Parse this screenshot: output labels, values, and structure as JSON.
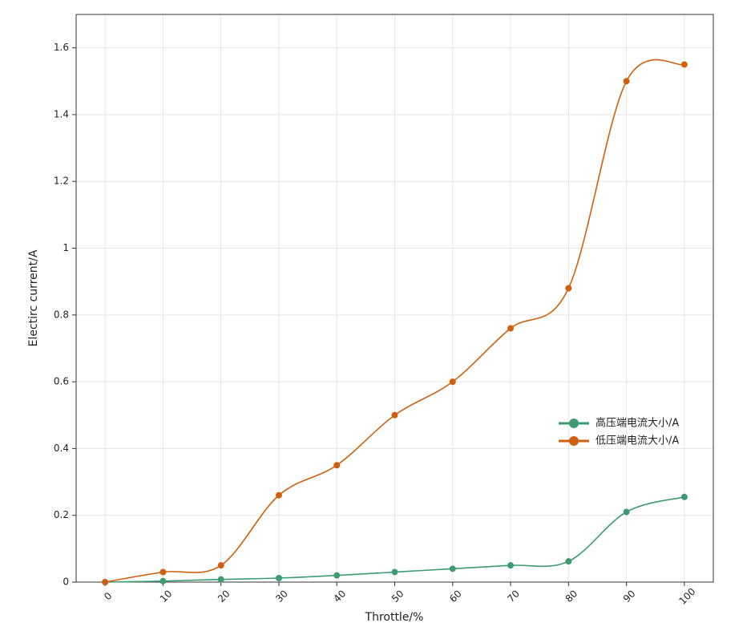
{
  "chart_data": {
    "type": "line",
    "xlabel": "Throttle/%",
    "ylabel": "Electirc current/A",
    "categories": [
      "0",
      "10",
      "20",
      "30",
      "40",
      "50",
      "60",
      "70",
      "80",
      "90",
      "100"
    ],
    "series": [
      {
        "name": "高压端电流大小/A",
        "color": "#3d9b74",
        "values": [
          0,
          0.003,
          0.008,
          0.012,
          0.02,
          0.03,
          0.04,
          0.05,
          0.062,
          0.21,
          0.255
        ]
      },
      {
        "name": "低压端电流大小/A",
        "color": "#d0600f",
        "values": [
          0,
          0.03,
          0.05,
          0.26,
          0.35,
          0.5,
          0.6,
          0.76,
          0.88,
          1.5,
          1.55
        ]
      }
    ],
    "ylim": [
      0,
      1.7
    ],
    "yticks": [
      0,
      0.2,
      0.4,
      0.6,
      0.8,
      1,
      1.2,
      1.4,
      1.6
    ],
    "grid": true,
    "smooth": true
  }
}
